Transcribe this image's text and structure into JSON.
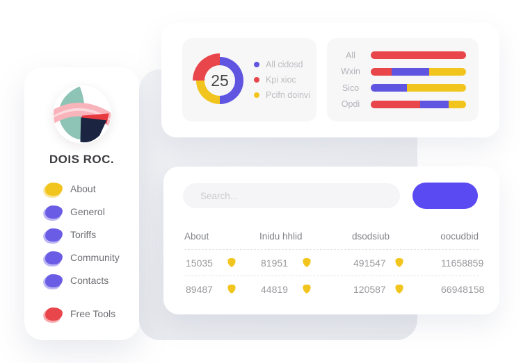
{
  "colors": {
    "red": "#e8464b",
    "purple": "#5f55e1",
    "yellow": "#f1c51d",
    "button_blue": "#5a4af2"
  },
  "brand": {
    "title": "DOIS ROC."
  },
  "sidebar": {
    "items": [
      {
        "label": "About",
        "color": "#f1c51d"
      },
      {
        "label": "Generol",
        "color": "#6a5ce4"
      },
      {
        "label": "Toriffs",
        "color": "#6a5ce4"
      },
      {
        "label": "Community",
        "color": "#6a5ce4"
      },
      {
        "label": "Contacts",
        "color": "#6a5ce4"
      },
      {
        "label": "Free Tools",
        "color": "#e8464b"
      }
    ]
  },
  "chart_data": [
    {
      "type": "pie",
      "center_value": "25",
      "segments": [
        {
          "label": "All cidosd",
          "color": "#5f55e1",
          "pct": 50
        },
        {
          "label": "Pcifn doinvi",
          "color": "#f1c51d",
          "pct": 25
        },
        {
          "label": "Kpi xioc",
          "color": "#e8464b",
          "pct": 25,
          "pop": true
        }
      ],
      "legend": [
        {
          "label": "All cidosd",
          "color": "#5f55e1"
        },
        {
          "label": "Kpi xioc",
          "color": "#e8464b"
        },
        {
          "label": "Pcifn doinvi",
          "color": "#f1c51d"
        }
      ]
    },
    {
      "type": "bar",
      "orientation": "horizontal-stacked",
      "categories": [
        "All",
        "Wxin",
        "Sico",
        "Opdi"
      ],
      "rows": [
        {
          "label": "All",
          "segments": [
            {
              "color": "#e8464b",
              "pct": 100
            }
          ]
        },
        {
          "label": "Wxin",
          "segments": [
            {
              "color": "#e8464b",
              "pct": 22
            },
            {
              "color": "#5f55e1",
              "pct": 39
            },
            {
              "color": "#f1c51d",
              "pct": 39
            }
          ]
        },
        {
          "label": "Sico",
          "segments": [
            {
              "color": "#5f55e1",
              "pct": 38
            },
            {
              "color": "#f1c51d",
              "pct": 62
            }
          ]
        },
        {
          "label": "Opdi",
          "segments": [
            {
              "color": "#e8464b",
              "pct": 52
            },
            {
              "color": "#5f55e1",
              "pct": 30
            },
            {
              "color": "#f1c51d",
              "pct": 18
            }
          ]
        }
      ]
    }
  ],
  "search": {
    "placeholder": "Search..."
  },
  "table": {
    "headers": [
      "About",
      "Inidu hhlid",
      "dsodsiub",
      "oocudbid"
    ],
    "rows": [
      [
        {
          "value": "15035",
          "badge": true
        },
        {
          "value": "81951",
          "badge": true
        },
        {
          "value": "491547",
          "badge": true
        },
        {
          "value": "11658859",
          "badge": false
        }
      ],
      [
        {
          "value": "89487",
          "badge": true
        },
        {
          "value": "44819",
          "badge": true
        },
        {
          "value": "120587",
          "badge": true
        },
        {
          "value": "66948158",
          "badge": false
        }
      ]
    ]
  }
}
